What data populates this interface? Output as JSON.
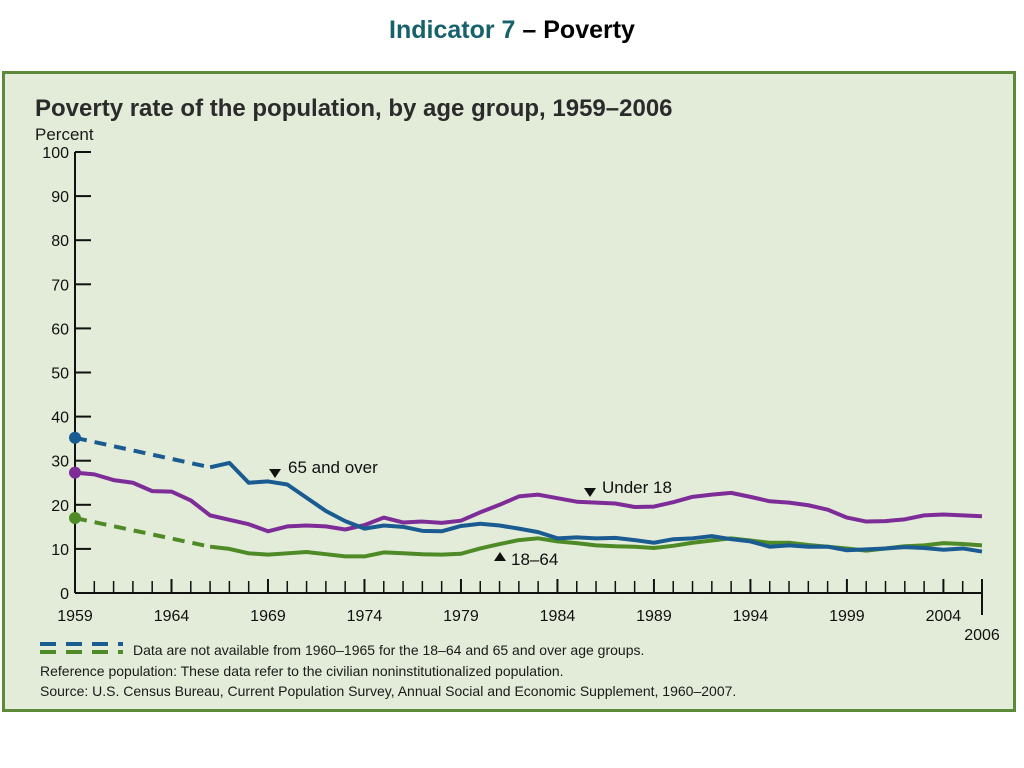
{
  "slide": {
    "title_accent": "Indicator 7",
    "title_rest": " – Poverty"
  },
  "colors": {
    "under18": "#7e2d98",
    "age18to64": "#4e8a26",
    "age65plus": "#1a5c92",
    "frame_border": "#5d8a3a",
    "panel_bg": "#e3ecd9",
    "title_accent": "#17616d"
  },
  "chart_data": {
    "type": "line",
    "title": "Poverty rate of the population, by age group, 1959–2006",
    "ylabel": "Percent",
    "ylim": [
      0,
      100
    ],
    "yticks": [
      0,
      10,
      20,
      30,
      40,
      50,
      60,
      70,
      80,
      90,
      100
    ],
    "xlim": [
      1959,
      2006
    ],
    "xticks": [
      1959,
      1964,
      1969,
      1974,
      1979,
      1984,
      1989,
      1994,
      1999,
      2004,
      2006
    ],
    "grid": false,
    "series": [
      {
        "name": "Under 18",
        "key": "under18",
        "x": [
          1959,
          1960,
          1961,
          1962,
          1963,
          1964,
          1965,
          1966,
          1967,
          1968,
          1969,
          1970,
          1971,
          1972,
          1973,
          1974,
          1975,
          1976,
          1977,
          1978,
          1979,
          1980,
          1981,
          1982,
          1983,
          1984,
          1985,
          1986,
          1987,
          1988,
          1989,
          1990,
          1991,
          1992,
          1993,
          1994,
          1995,
          1996,
          1997,
          1998,
          1999,
          2000,
          2001,
          2002,
          2003,
          2004,
          2005,
          2006
        ],
        "values": [
          27.3,
          26.9,
          25.6,
          25.0,
          23.1,
          23.0,
          21.0,
          17.6,
          16.6,
          15.6,
          14.0,
          15.1,
          15.3,
          15.1,
          14.4,
          15.4,
          17.1,
          16.0,
          16.2,
          15.9,
          16.4,
          18.3,
          20.0,
          21.9,
          22.3,
          21.5,
          20.7,
          20.5,
          20.3,
          19.5,
          19.6,
          20.6,
          21.8,
          22.3,
          22.7,
          21.8,
          20.8,
          20.5,
          19.9,
          18.9,
          17.1,
          16.2,
          16.3,
          16.7,
          17.6,
          17.8,
          17.6,
          17.4
        ],
        "dashed_until": null
      },
      {
        "name": "18–64",
        "key": "age18to64",
        "x": [
          1959,
          1966,
          1967,
          1968,
          1969,
          1970,
          1971,
          1972,
          1973,
          1974,
          1975,
          1976,
          1977,
          1978,
          1979,
          1980,
          1981,
          1982,
          1983,
          1984,
          1985,
          1986,
          1987,
          1988,
          1989,
          1990,
          1991,
          1992,
          1993,
          1994,
          1995,
          1996,
          1997,
          1998,
          1999,
          2000,
          2001,
          2002,
          2003,
          2004,
          2005,
          2006
        ],
        "values": [
          17.0,
          10.5,
          10.0,
          9.0,
          8.7,
          9.0,
          9.3,
          8.8,
          8.3,
          8.3,
          9.2,
          9.0,
          8.8,
          8.7,
          8.9,
          10.1,
          11.1,
          12.0,
          12.4,
          11.7,
          11.3,
          10.8,
          10.6,
          10.5,
          10.2,
          10.7,
          11.4,
          11.9,
          12.4,
          11.9,
          11.4,
          11.4,
          10.9,
          10.5,
          10.1,
          9.6,
          10.1,
          10.6,
          10.8,
          11.3,
          11.1,
          10.8
        ],
        "dashed_until": 1966
      },
      {
        "name": "65 and over",
        "key": "age65plus",
        "x": [
          1959,
          1966,
          1967,
          1968,
          1969,
          1970,
          1971,
          1972,
          1973,
          1974,
          1975,
          1976,
          1977,
          1978,
          1979,
          1980,
          1981,
          1982,
          1983,
          1984,
          1985,
          1986,
          1987,
          1988,
          1989,
          1990,
          1991,
          1992,
          1993,
          1994,
          1995,
          1996,
          1997,
          1998,
          1999,
          2000,
          2001,
          2002,
          2003,
          2004,
          2005,
          2006
        ],
        "values": [
          35.2,
          28.5,
          29.5,
          25.0,
          25.3,
          24.6,
          21.6,
          18.6,
          16.3,
          14.6,
          15.3,
          15.0,
          14.1,
          14.0,
          15.2,
          15.7,
          15.3,
          14.6,
          13.8,
          12.4,
          12.6,
          12.4,
          12.5,
          12.0,
          11.4,
          12.2,
          12.4,
          12.9,
          12.2,
          11.7,
          10.5,
          10.8,
          10.5,
          10.5,
          9.7,
          9.9,
          10.1,
          10.4,
          10.2,
          9.8,
          10.1,
          9.4
        ],
        "dashed_until": 1966
      }
    ],
    "annotations": [
      {
        "series": "age65plus",
        "text": "65 and over"
      },
      {
        "series": "under18",
        "text": "Under 18"
      },
      {
        "series": "age18to64",
        "text": "18–64"
      }
    ],
    "notes": [
      "Data are not available from 1960–1965 for the 18–64 and 65 and over age groups.",
      "Reference population: These data refer to the civilian noninstitutionalized population.",
      "Source:  U.S. Census Bureau, Current Population Survey, Annual Social and Economic Supplement, 1960–2007."
    ]
  }
}
